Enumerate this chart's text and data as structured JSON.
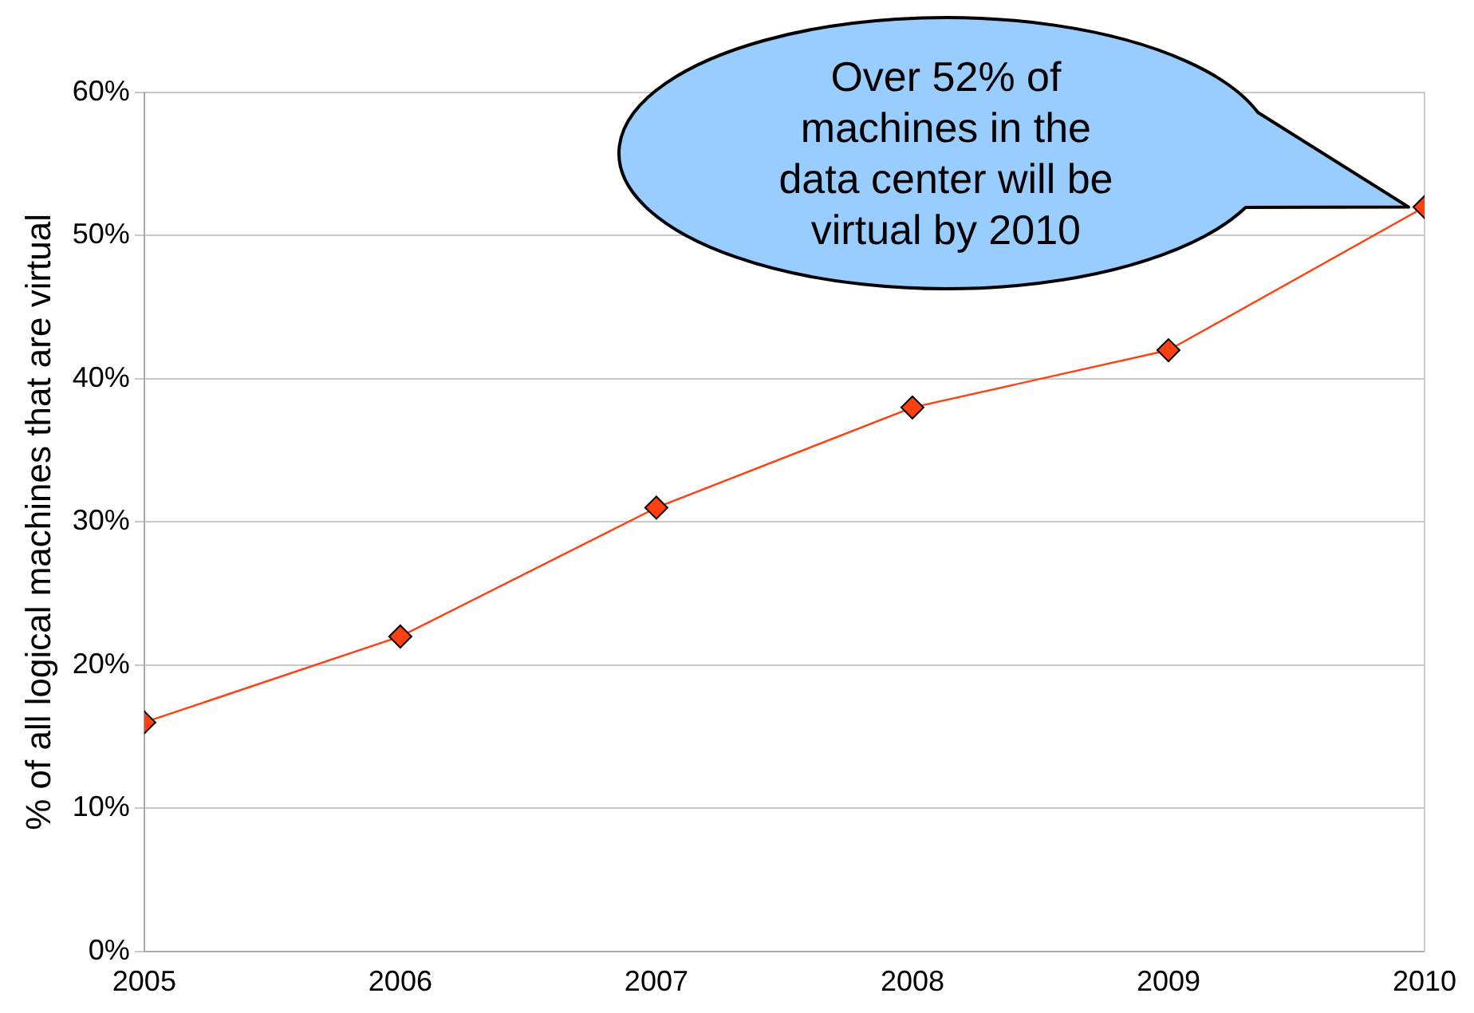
{
  "chart_data": {
    "type": "line",
    "ylabel": "% of all logical machines that are virtual",
    "x": [
      2005,
      2006,
      2007,
      2008,
      2009,
      2010
    ],
    "series": [
      {
        "color": "#ff4010",
        "values": [
          16,
          22,
          31,
          38,
          42,
          52
        ]
      }
    ],
    "xlim": [
      2005,
      2010
    ],
    "xticks": [
      2005,
      2006,
      2007,
      2008,
      2009,
      2010
    ],
    "ylim": [
      0,
      60
    ],
    "yticks": [
      {
        "value": 0,
        "label": "0%"
      },
      {
        "value": 10,
        "label": "10%"
      },
      {
        "value": 20,
        "label": "20%"
      },
      {
        "value": 30,
        "label": "30%"
      },
      {
        "value": 40,
        "label": "40%"
      },
      {
        "value": 50,
        "label": "50%"
      },
      {
        "value": 60,
        "label": "60%"
      }
    ],
    "grid": "y",
    "marker": "diamond",
    "line_style": "solid",
    "legend": false,
    "annotations": [
      "Over 52% of machines in the data center will be virtual by 2010"
    ]
  }
}
